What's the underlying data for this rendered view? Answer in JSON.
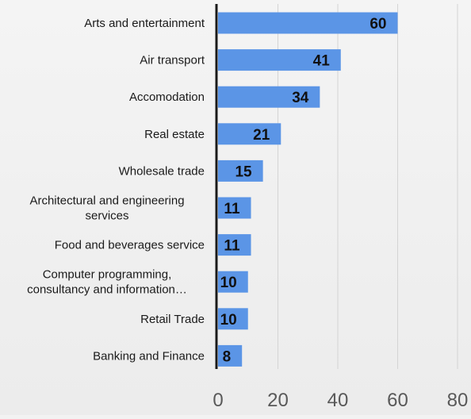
{
  "chart_data": {
    "type": "bar",
    "orientation": "horizontal",
    "categories": [
      "Arts and entertainment",
      "Air transport",
      "Accomodation",
      "Real estate",
      "Wholesale trade",
      "Architectural and engineering services",
      "Food and beverages service",
      "Computer programming, consultancy and information…",
      "Retail Trade",
      "Banking and Finance"
    ],
    "category_lines": [
      [
        "Arts and entertainment"
      ],
      [
        "Air transport"
      ],
      [
        "Accomodation"
      ],
      [
        "Real estate"
      ],
      [
        "Wholesale trade"
      ],
      [
        "Architectural and engineering",
        "services"
      ],
      [
        "Food and beverages service"
      ],
      [
        "Computer programming,",
        "consultancy and information…"
      ],
      [
        "Retail Trade"
      ],
      [
        "Banking and Finance"
      ]
    ],
    "values": [
      60,
      41,
      34,
      21,
      15,
      11,
      11,
      10,
      10,
      8
    ],
    "xlim": [
      0,
      80
    ],
    "xticks": [
      0,
      20,
      40,
      60,
      80
    ],
    "grid": true,
    "data_labels": true,
    "legend": "none",
    "bar_color": "#5b95e6",
    "title": "",
    "xlabel": "",
    "ylabel": ""
  }
}
